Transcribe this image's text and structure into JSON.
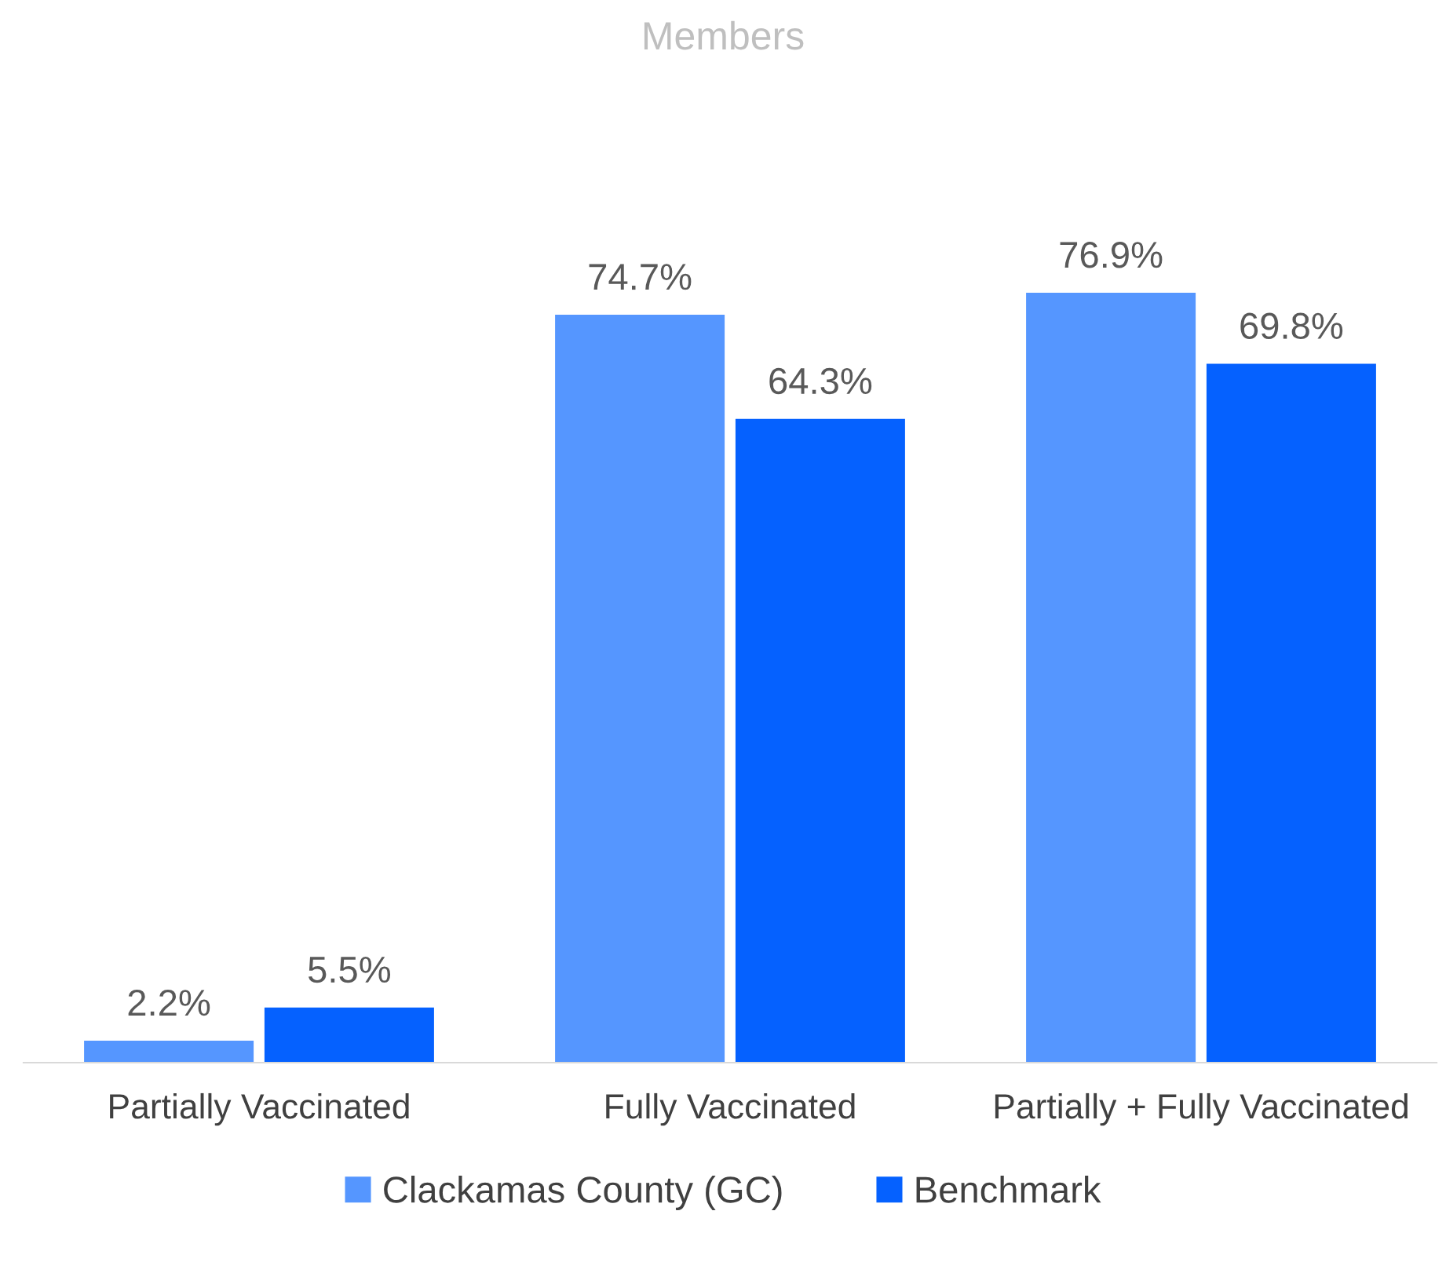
{
  "chart_data": {
    "type": "bar",
    "title": "Members",
    "categories": [
      "Partially Vaccinated",
      "Fully Vaccinated",
      "Partially + Fully Vaccinated"
    ],
    "series": [
      {
        "name": "Clackamas County (GC)",
        "color": "#5596ff",
        "values": [
          2.2,
          74.7,
          76.9
        ],
        "value_labels": [
          "2.2%",
          "74.7%",
          "76.9%"
        ]
      },
      {
        "name": "Benchmark",
        "color": "#0561ff",
        "values": [
          5.5,
          64.3,
          69.8
        ],
        "value_labels": [
          "5.5%",
          "64.3%",
          "69.8%"
        ]
      }
    ],
    "legend": "bottom",
    "grid": false
  }
}
